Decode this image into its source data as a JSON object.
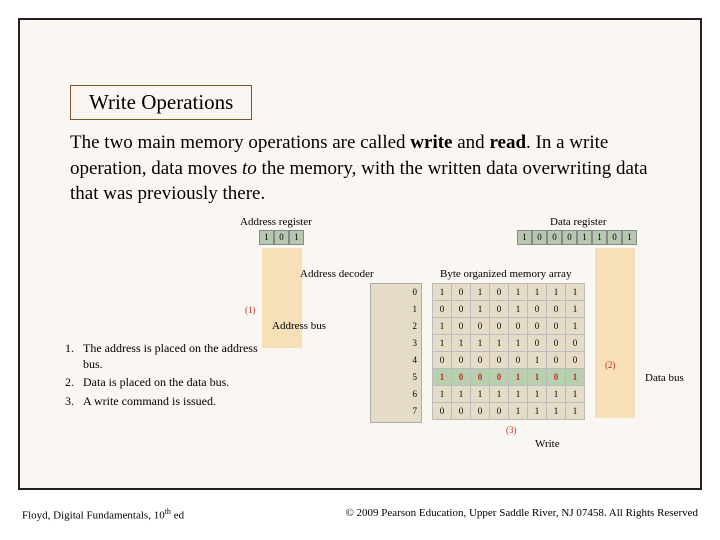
{
  "title": "Write Operations",
  "body": "The two main memory operations are called <b>write</b> and <b>read</b>. In a write operation, data moves <i>to</i> the memory, with the written data overwriting data that was previously there.",
  "labels": {
    "addr_reg": "Address register",
    "data_reg": "Data register",
    "addr_decoder": "Address decoder",
    "mem_array": "Byte organized memory array",
    "addr_bus": "Address bus",
    "data_bus": "Data bus",
    "write": "Write"
  },
  "addr_reg_bits": [
    "1",
    "0",
    "1"
  ],
  "data_reg_bits": [
    "1",
    "0",
    "0",
    "0",
    "1",
    "1",
    "0",
    "1"
  ],
  "row_numbers": [
    "0",
    "1",
    "2",
    "3",
    "4",
    "5",
    "6",
    "7"
  ],
  "memory_rows": [
    [
      "1",
      "0",
      "1",
      "0",
      "1",
      "1",
      "1",
      "1"
    ],
    [
      "0",
      "0",
      "1",
      "0",
      "1",
      "0",
      "0",
      "1"
    ],
    [
      "1",
      "0",
      "0",
      "0",
      "0",
      "0",
      "0",
      "1"
    ],
    [
      "1",
      "1",
      "1",
      "1",
      "1",
      "0",
      "0",
      "0"
    ],
    [
      "0",
      "0",
      "0",
      "0",
      "0",
      "1",
      "0",
      "0"
    ],
    [
      "1",
      "0",
      "0",
      "0",
      "1",
      "1",
      "0",
      "1"
    ],
    [
      "1",
      "1",
      "1",
      "1",
      "1",
      "1",
      "1",
      "1"
    ],
    [
      "0",
      "0",
      "0",
      "0",
      "1",
      "1",
      "1",
      "1"
    ]
  ],
  "highlight_row": 5,
  "markers": {
    "m1": "(1)",
    "m2": "(2)",
    "m3": "(3)"
  },
  "steps": [
    "The address is placed on the address bus.",
    "Data is placed on the data bus.",
    "A write command is issued."
  ],
  "footer": {
    "left": "Floyd, Digital Fundamentals, 10<sup>th</sup> ed",
    "right": "© 2009 Pearson Education, Upper Saddle River, NJ 07458. All Rights Reserved"
  }
}
